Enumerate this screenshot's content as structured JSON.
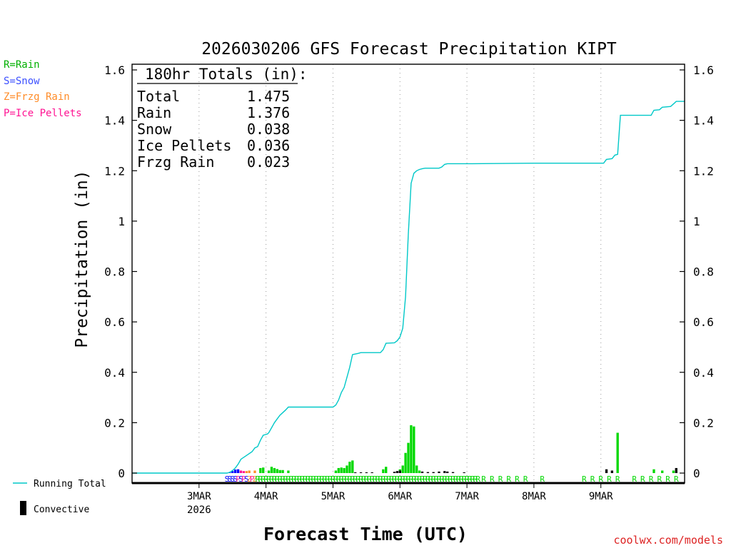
{
  "chart_data": {
    "type": "bar",
    "title": "2026030206 GFS Forecast Precipitation KIPT",
    "xlabel": "Forecast Time (UTC)",
    "ylabel": "Precipitation (in)",
    "ylim": [
      0,
      1.6
    ],
    "xlim_hours": [
      -24,
      174
    ],
    "grid": "vertical dotted at day boundaries",
    "yticks": [
      {
        "v": 0,
        "label": "0"
      },
      {
        "v": 0.2,
        "label": "0.2"
      },
      {
        "v": 0.4,
        "label": "0.4"
      },
      {
        "v": 0.6,
        "label": "0.6"
      },
      {
        "v": 0.8,
        "label": "0.8"
      },
      {
        "v": 1,
        "label": "1"
      },
      {
        "v": 1.2,
        "label": "1.2"
      },
      {
        "v": 1.4,
        "label": "1.4"
      },
      {
        "v": 1.6,
        "label": "1.6"
      }
    ],
    "xticks": [
      {
        "h": 0,
        "label": "3MAR",
        "sub": "2026"
      },
      {
        "h": 24,
        "label": "4MAR"
      },
      {
        "h": 48,
        "label": "5MAR"
      },
      {
        "h": 72,
        "label": "6MAR"
      },
      {
        "h": 96,
        "label": "7MAR"
      },
      {
        "h": 120,
        "label": "8MAR"
      },
      {
        "h": 144,
        "label": "9MAR"
      }
    ],
    "totals": {
      "header": "180hr Totals (in):",
      "rows": [
        {
          "label": "Total",
          "value": "1.475"
        },
        {
          "label": "Rain",
          "value": "1.376"
        },
        {
          "label": "Snow",
          "value": "0.038"
        },
        {
          "label": "Ice Pellets",
          "value": "0.036"
        },
        {
          "label": "Frzg Rain",
          "value": "0.023"
        }
      ]
    },
    "type_legend": [
      {
        "text": "R=Rain",
        "color": "#00b000"
      },
      {
        "text": "S=Snow",
        "color": "#3c50ff"
      },
      {
        "text": "Z=Frzg Rain",
        "color": "#ff8c28"
      },
      {
        "text": "P=Ice Pellets",
        "color": "#ff1493"
      }
    ],
    "series_legend": [
      {
        "name": "Running Total",
        "color": "#00c8c8"
      },
      {
        "name": "Convective",
        "color": "#000000"
      }
    ],
    "colors": {
      "rain": "#00d800",
      "snow": "#0000ff",
      "frzg": "#ff8c28",
      "pellets": "#ff1493",
      "convective": "#000000",
      "running": "#00c8c8"
    },
    "running_total": [
      [
        -24,
        0
      ],
      [
        10,
        0
      ],
      [
        11,
        0.003
      ],
      [
        12,
        0.01
      ],
      [
        13,
        0.02
      ],
      [
        14,
        0.035
      ],
      [
        15,
        0.055
      ],
      [
        17,
        0.07
      ],
      [
        19,
        0.085
      ],
      [
        20,
        0.1
      ],
      [
        21,
        0.105
      ],
      [
        22,
        0.13
      ],
      [
        23,
        0.15
      ],
      [
        24.5,
        0.155
      ],
      [
        25,
        0.16
      ],
      [
        26,
        0.18
      ],
      [
        27,
        0.2
      ],
      [
        28,
        0.215
      ],
      [
        29,
        0.23
      ],
      [
        30,
        0.24
      ],
      [
        31,
        0.25
      ],
      [
        32,
        0.262
      ],
      [
        33,
        0.262
      ],
      [
        48,
        0.262
      ],
      [
        49,
        0.27
      ],
      [
        50,
        0.29
      ],
      [
        51,
        0.32
      ],
      [
        52,
        0.34
      ],
      [
        53,
        0.38
      ],
      [
        54,
        0.42
      ],
      [
        55,
        0.47
      ],
      [
        57,
        0.475
      ],
      [
        58,
        0.478
      ],
      [
        65,
        0.478
      ],
      [
        66,
        0.49
      ],
      [
        67,
        0.515
      ],
      [
        70,
        0.517
      ],
      [
        71,
        0.525
      ],
      [
        72,
        0.54
      ],
      [
        73,
        0.575
      ],
      [
        74,
        0.7
      ],
      [
        75,
        0.95
      ],
      [
        76,
        1.15
      ],
      [
        77,
        1.19
      ],
      [
        78,
        1.2
      ],
      [
        79,
        1.205
      ],
      [
        80,
        1.208
      ],
      [
        81,
        1.21
      ],
      [
        86,
        1.21
      ],
      [
        87,
        1.215
      ],
      [
        88,
        1.225
      ],
      [
        89,
        1.228
      ],
      [
        98,
        1.228
      ],
      [
        120,
        1.23
      ],
      [
        145,
        1.23
      ],
      [
        146,
        1.245
      ],
      [
        148,
        1.248
      ],
      [
        149,
        1.262
      ],
      [
        150,
        1.265
      ],
      [
        151,
        1.42
      ],
      [
        162,
        1.42
      ],
      [
        163,
        1.44
      ],
      [
        165,
        1.442
      ],
      [
        166,
        1.452
      ],
      [
        169,
        1.455
      ],
      [
        170,
        1.465
      ],
      [
        171,
        1.475
      ],
      [
        174,
        1.475
      ]
    ],
    "bars": [
      {
        "h": 11,
        "v": 0.003,
        "t": "snow"
      },
      {
        "h": 12,
        "v": 0.008,
        "t": "snow"
      },
      {
        "h": 13,
        "v": 0.014,
        "t": "snow"
      },
      {
        "h": 14,
        "v": 0.015,
        "t": "snow"
      },
      {
        "h": 15,
        "v": 0.01,
        "t": "pellets"
      },
      {
        "h": 16,
        "v": 0.008,
        "t": "pellets"
      },
      {
        "h": 17,
        "v": 0.008,
        "t": "frzg"
      },
      {
        "h": 18,
        "v": 0.01,
        "t": "frzg"
      },
      {
        "h": 20,
        "v": 0.01,
        "t": "frzg"
      },
      {
        "h": 22,
        "v": 0.02,
        "t": "rain"
      },
      {
        "h": 23,
        "v": 0.022,
        "t": "rain"
      },
      {
        "h": 25,
        "v": 0.01,
        "t": "rain"
      },
      {
        "h": 26,
        "v": 0.025,
        "t": "rain"
      },
      {
        "h": 27,
        "v": 0.02,
        "t": "rain"
      },
      {
        "h": 28,
        "v": 0.016,
        "t": "rain"
      },
      {
        "h": 29,
        "v": 0.012,
        "t": "rain"
      },
      {
        "h": 30,
        "v": 0.012,
        "t": "rain"
      },
      {
        "h": 32,
        "v": 0.01,
        "t": "rain"
      },
      {
        "h": 49,
        "v": 0.01,
        "t": "rain"
      },
      {
        "h": 50,
        "v": 0.02,
        "t": "rain"
      },
      {
        "h": 51,
        "v": 0.022,
        "t": "rain"
      },
      {
        "h": 52,
        "v": 0.02,
        "t": "rain"
      },
      {
        "h": 53,
        "v": 0.03,
        "t": "rain"
      },
      {
        "h": 54,
        "v": 0.045,
        "t": "rain"
      },
      {
        "h": 55,
        "v": 0.05,
        "t": "rain"
      },
      {
        "h": 66,
        "v": 0.015,
        "t": "rain"
      },
      {
        "h": 67,
        "v": 0.025,
        "t": "rain"
      },
      {
        "h": 72,
        "v": 0.015,
        "t": "rain"
      },
      {
        "h": 73,
        "v": 0.03,
        "t": "rain"
      },
      {
        "h": 74,
        "v": 0.08,
        "t": "rain"
      },
      {
        "h": 75,
        "v": 0.12,
        "t": "rain"
      },
      {
        "h": 76,
        "v": 0.19,
        "t": "rain"
      },
      {
        "h": 77,
        "v": 0.185,
        "t": "rain"
      },
      {
        "h": 78,
        "v": 0.03,
        "t": "rain"
      },
      {
        "h": 79,
        "v": 0.01,
        "t": "rain"
      },
      {
        "h": 150,
        "v": 0.16,
        "t": "rain"
      },
      {
        "h": 163,
        "v": 0.015,
        "t": "rain"
      },
      {
        "h": 166,
        "v": 0.01,
        "t": "rain"
      },
      {
        "h": 170,
        "v": 0.01,
        "t": "rain"
      },
      {
        "h": 171,
        "v": 0.008,
        "t": "rain"
      }
    ],
    "convective": [
      {
        "h": 56,
        "v": 0.003
      },
      {
        "h": 58,
        "v": 0.003
      },
      {
        "h": 60,
        "v": 0.003
      },
      {
        "h": 62,
        "v": 0.003
      },
      {
        "h": 70,
        "v": 0.005
      },
      {
        "h": 71,
        "v": 0.008
      },
      {
        "h": 72,
        "v": 0.01
      },
      {
        "h": 80,
        "v": 0.006
      },
      {
        "h": 82,
        "v": 0.004
      },
      {
        "h": 84,
        "v": 0.004
      },
      {
        "h": 86,
        "v": 0.006
      },
      {
        "h": 88,
        "v": 0.008
      },
      {
        "h": 89,
        "v": 0.006
      },
      {
        "h": 91,
        "v": 0.004
      },
      {
        "h": 95,
        "v": 0.003
      },
      {
        "h": 146,
        "v": 0.015
      },
      {
        "h": 148,
        "v": 0.01
      },
      {
        "h": 171,
        "v": 0.02
      }
    ],
    "type_markers": [
      {
        "h": 10,
        "s": "S",
        "t": "snow"
      },
      {
        "h": 11,
        "s": "S",
        "t": "snow"
      },
      {
        "h": 12,
        "s": "S",
        "t": "snow"
      },
      {
        "h": 13,
        "s": "S",
        "t": "snow"
      },
      {
        "h": 14,
        "s": "P",
        "t": "pellets"
      },
      {
        "h": 15,
        "s": "S",
        "t": "snow"
      },
      {
        "h": 16,
        "s": "P",
        "t": "pellets"
      },
      {
        "h": 17,
        "s": "S",
        "t": "snow"
      },
      {
        "h": 18,
        "s": "Z",
        "t": "frzg"
      },
      {
        "h": 19,
        "s": "P",
        "t": "pellets"
      },
      {
        "h": 20,
        "s": "Z",
        "t": "frzg"
      },
      {
        "h": 21,
        "s": "R",
        "t": "rain"
      },
      {
        "h": 22,
        "s": "R",
        "t": "rain"
      },
      {
        "h": 23,
        "s": "R",
        "t": "rain"
      },
      {
        "h": 24,
        "s": "R",
        "t": "rain"
      },
      {
        "h": 25,
        "s": "R",
        "t": "rain"
      },
      {
        "h": 26,
        "s": "R",
        "t": "rain"
      },
      {
        "h": 27,
        "s": "R",
        "t": "rain"
      },
      {
        "h": 28,
        "s": "R",
        "t": "rain"
      },
      {
        "h": 29,
        "s": "R",
        "t": "rain"
      },
      {
        "h": 30,
        "s": "R",
        "t": "rain"
      },
      {
        "h": 31,
        "s": "R",
        "t": "rain"
      },
      {
        "h": 32,
        "s": "R",
        "t": "rain"
      },
      {
        "h": 33,
        "s": "R",
        "t": "rain"
      },
      {
        "h": 34,
        "s": "R",
        "t": "rain"
      },
      {
        "h": 35,
        "s": "R",
        "t": "rain"
      },
      {
        "h": 36,
        "s": "R",
        "t": "rain"
      },
      {
        "h": 37,
        "s": "R",
        "t": "rain"
      },
      {
        "h": 38,
        "s": "R",
        "t": "rain"
      },
      {
        "h": 39,
        "s": "R",
        "t": "rain"
      },
      {
        "h": 40,
        "s": "R",
        "t": "rain"
      },
      {
        "h": 41,
        "s": "R",
        "t": "rain"
      },
      {
        "h": 42,
        "s": "R",
        "t": "rain"
      },
      {
        "h": 43,
        "s": "R",
        "t": "rain"
      },
      {
        "h": 44,
        "s": "R",
        "t": "rain"
      },
      {
        "h": 45,
        "s": "R",
        "t": "rain"
      },
      {
        "h": 46,
        "s": "R",
        "t": "rain"
      },
      {
        "h": 47,
        "s": "R",
        "t": "rain"
      },
      {
        "h": 48,
        "s": "R",
        "t": "rain"
      },
      {
        "h": 49,
        "s": "R",
        "t": "rain"
      },
      {
        "h": 50,
        "s": "R",
        "t": "rain"
      },
      {
        "h": 51,
        "s": "R",
        "t": "rain"
      },
      {
        "h": 52,
        "s": "R",
        "t": "rain"
      },
      {
        "h": 53,
        "s": "R",
        "t": "rain"
      },
      {
        "h": 54,
        "s": "R",
        "t": "rain"
      },
      {
        "h": 55,
        "s": "R",
        "t": "rain"
      },
      {
        "h": 56,
        "s": "R",
        "t": "rain"
      },
      {
        "h": 57,
        "s": "R",
        "t": "rain"
      },
      {
        "h": 58,
        "s": "R",
        "t": "rain"
      },
      {
        "h": 59,
        "s": "R",
        "t": "rain"
      },
      {
        "h": 60,
        "s": "R",
        "t": "rain"
      },
      {
        "h": 61,
        "s": "R",
        "t": "rain"
      },
      {
        "h": 62,
        "s": "R",
        "t": "rain"
      },
      {
        "h": 63,
        "s": "R",
        "t": "rain"
      },
      {
        "h": 64,
        "s": "R",
        "t": "rain"
      },
      {
        "h": 65,
        "s": "R",
        "t": "rain"
      },
      {
        "h": 66,
        "s": "R",
        "t": "rain"
      },
      {
        "h": 67,
        "s": "R",
        "t": "rain"
      },
      {
        "h": 68,
        "s": "R",
        "t": "rain"
      },
      {
        "h": 69,
        "s": "R",
        "t": "rain"
      },
      {
        "h": 70,
        "s": "R",
        "t": "rain"
      },
      {
        "h": 71,
        "s": "R",
        "t": "rain"
      },
      {
        "h": 72,
        "s": "R",
        "t": "rain"
      },
      {
        "h": 73,
        "s": "R",
        "t": "rain"
      },
      {
        "h": 74,
        "s": "R",
        "t": "rain"
      },
      {
        "h": 75,
        "s": "R",
        "t": "rain"
      },
      {
        "h": 76,
        "s": "R",
        "t": "rain"
      },
      {
        "h": 77,
        "s": "R",
        "t": "rain"
      },
      {
        "h": 78,
        "s": "R",
        "t": "rain"
      },
      {
        "h": 79,
        "s": "R",
        "t": "rain"
      },
      {
        "h": 80,
        "s": "R",
        "t": "rain"
      },
      {
        "h": 81,
        "s": "R",
        "t": "rain"
      },
      {
        "h": 82,
        "s": "R",
        "t": "rain"
      },
      {
        "h": 83,
        "s": "R",
        "t": "rain"
      },
      {
        "h": 84,
        "s": "R",
        "t": "rain"
      },
      {
        "h": 85,
        "s": "R",
        "t": "rain"
      },
      {
        "h": 86,
        "s": "R",
        "t": "rain"
      },
      {
        "h": 87,
        "s": "R",
        "t": "rain"
      },
      {
        "h": 88,
        "s": "R",
        "t": "rain"
      },
      {
        "h": 89,
        "s": "R",
        "t": "rain"
      },
      {
        "h": 90,
        "s": "R",
        "t": "rain"
      },
      {
        "h": 91,
        "s": "R",
        "t": "rain"
      },
      {
        "h": 92,
        "s": "R",
        "t": "rain"
      },
      {
        "h": 93,
        "s": "R",
        "t": "rain"
      },
      {
        "h": 94,
        "s": "R",
        "t": "rain"
      },
      {
        "h": 95,
        "s": "R",
        "t": "rain"
      },
      {
        "h": 96,
        "s": "R",
        "t": "rain"
      },
      {
        "h": 97,
        "s": "R",
        "t": "rain"
      },
      {
        "h": 98,
        "s": "R",
        "t": "rain"
      },
      {
        "h": 99,
        "s": "R",
        "t": "rain"
      },
      {
        "h": 100,
        "s": "R",
        "t": "rain"
      },
      {
        "h": 102,
        "s": "R",
        "t": "rain"
      },
      {
        "h": 105,
        "s": "R",
        "t": "rain"
      },
      {
        "h": 108,
        "s": "R",
        "t": "rain"
      },
      {
        "h": 111,
        "s": "R",
        "t": "rain"
      },
      {
        "h": 114,
        "s": "R",
        "t": "rain"
      },
      {
        "h": 117,
        "s": "R",
        "t": "rain"
      },
      {
        "h": 123,
        "s": "R",
        "t": "rain"
      },
      {
        "h": 138,
        "s": "R",
        "t": "rain"
      },
      {
        "h": 141,
        "s": "R",
        "t": "rain"
      },
      {
        "h": 144,
        "s": "R",
        "t": "rain"
      },
      {
        "h": 147,
        "s": "R",
        "t": "rain"
      },
      {
        "h": 150,
        "s": "R",
        "t": "rain"
      },
      {
        "h": 156,
        "s": "R",
        "t": "rain"
      },
      {
        "h": 159,
        "s": "R",
        "t": "rain"
      },
      {
        "h": 162,
        "s": "R",
        "t": "rain"
      },
      {
        "h": 165,
        "s": "R",
        "t": "rain"
      },
      {
        "h": 168,
        "s": "R",
        "t": "rain"
      },
      {
        "h": 171,
        "s": "R",
        "t": "rain"
      }
    ]
  },
  "credit": "coolwx.com/models"
}
